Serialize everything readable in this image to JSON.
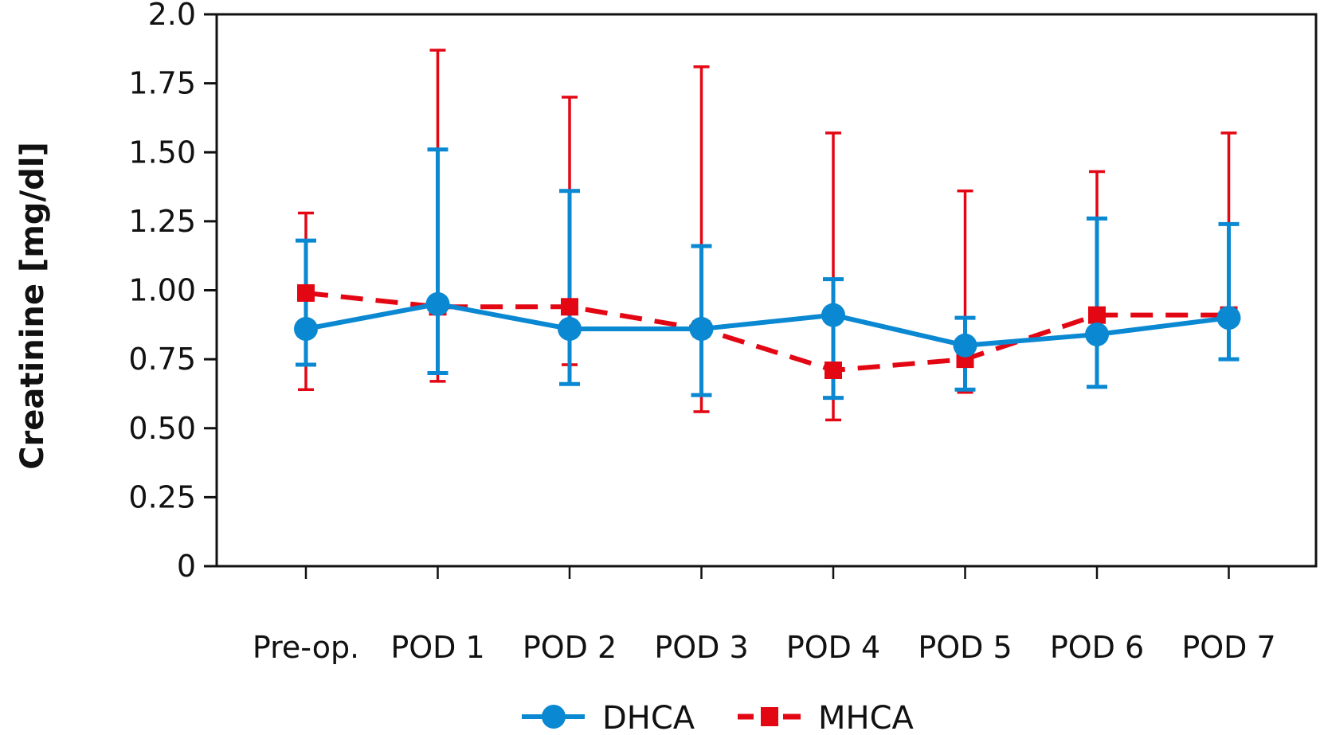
{
  "chart_data": {
    "type": "line",
    "title": "",
    "xlabel": "",
    "ylabel": "Creatinine [mg/dl]",
    "ylim": [
      0,
      2.0
    ],
    "yticks": [
      0,
      0.25,
      0.5,
      0.75,
      1.0,
      1.25,
      1.5,
      1.75,
      2.0
    ],
    "ytick_labels": [
      "0",
      "0.25",
      "0.50",
      "0.75",
      "1.00",
      "1.25",
      "1.50",
      "1.75",
      "2.0"
    ],
    "categories": [
      "Pre-op.",
      "POD 1",
      "POD 2",
      "POD 3",
      "POD 4",
      "POD 5",
      "POD 6",
      "POD 7"
    ],
    "grid": false,
    "legend_position": "bottom-center",
    "series": [
      {
        "name": "DHCA",
        "color": "#0a88d2",
        "line_style": "solid",
        "marker": "circle",
        "values": [
          0.86,
          0.95,
          0.86,
          0.86,
          0.91,
          0.8,
          0.84,
          0.9
        ],
        "error_upper": [
          1.18,
          1.51,
          1.36,
          1.16,
          1.04,
          0.9,
          1.26,
          1.24
        ],
        "error_lower": [
          0.73,
          0.7,
          0.66,
          0.62,
          0.61,
          0.64,
          0.65,
          0.75
        ]
      },
      {
        "name": "MHCA",
        "color": "#e30613",
        "line_style": "dashed",
        "marker": "square",
        "values": [
          0.99,
          0.94,
          0.94,
          0.86,
          0.71,
          0.75,
          0.91,
          0.91
        ],
        "error_upper": [
          1.28,
          1.87,
          1.7,
          1.81,
          1.57,
          1.36,
          1.43,
          1.57
        ],
        "error_lower": [
          0.64,
          0.67,
          0.73,
          0.56,
          0.53,
          0.63,
          0.91,
          0.91
        ]
      }
    ]
  }
}
